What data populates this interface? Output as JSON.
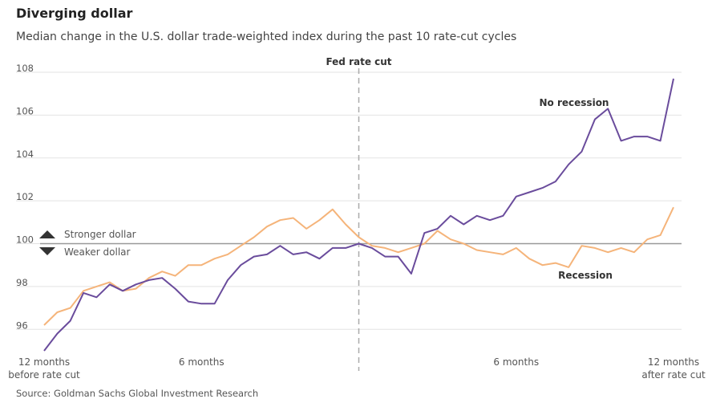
{
  "chart_data": {
    "type": "line",
    "title": "Diverging dollar",
    "subtitle": "Median change in the U.S. dollar trade-weighted index during the past 10 rate-cut cycles",
    "source": "Source: Goldman Sachs Global Investment Research",
    "x": [
      -12,
      -11.5,
      -11,
      -10.5,
      -10,
      -9.5,
      -9,
      -8.5,
      -8,
      -7.5,
      -7,
      -6.5,
      -6,
      -5.5,
      -5,
      -4.5,
      -4,
      -3.5,
      -3,
      -2.5,
      -2,
      -1.5,
      -1,
      -0.5,
      0,
      0.5,
      1,
      1.5,
      2,
      2.5,
      3,
      3.5,
      4,
      4.5,
      5,
      5.5,
      6,
      6.5,
      7,
      7.5,
      8,
      8.5,
      9,
      9.5,
      10,
      10.5,
      11,
      11.5,
      12
    ],
    "series": [
      {
        "name": "No recession",
        "color": "#6a4c9c",
        "values": [
          95.0,
          95.8,
          96.4,
          97.7,
          97.5,
          98.1,
          97.8,
          98.1,
          98.3,
          98.4,
          97.9,
          97.3,
          97.2,
          97.2,
          98.3,
          99.0,
          99.4,
          99.5,
          99.9,
          99.5,
          99.6,
          99.3,
          99.8,
          99.8,
          100.0,
          99.8,
          99.4,
          99.4,
          98.6,
          100.5,
          100.7,
          101.3,
          100.9,
          101.3,
          101.1,
          101.3,
          102.2,
          102.4,
          102.6,
          102.9,
          103.7,
          104.3,
          105.8,
          106.3,
          104.8,
          105.0,
          105.0,
          104.8,
          107.7
        ]
      },
      {
        "name": "Recession",
        "color": "#f5b47a",
        "values": [
          96.2,
          96.8,
          97.0,
          97.8,
          98.0,
          98.2,
          97.8,
          97.9,
          98.4,
          98.7,
          98.5,
          99.0,
          99.0,
          99.3,
          99.5,
          99.9,
          100.3,
          100.8,
          101.1,
          101.2,
          100.7,
          101.1,
          101.6,
          100.9,
          100.3,
          99.9,
          99.8,
          99.6,
          99.8,
          100.0,
          100.6,
          100.2,
          100.0,
          99.7,
          99.6,
          99.5,
          99.8,
          99.3,
          99.0,
          99.1,
          98.9,
          99.9,
          99.8,
          99.6,
          99.8,
          99.6,
          100.2,
          100.4,
          101.7
        ]
      }
    ],
    "xlim": [
      -12,
      12
    ],
    "xticks": [
      {
        "value": -12,
        "label": "12 months\nbefore rate cut"
      },
      {
        "value": -6,
        "label": "6 months"
      },
      {
        "value": 6,
        "label": "6 months"
      },
      {
        "value": 12,
        "label": "12 months\nafter rate cut"
      }
    ],
    "ylim": [
      95,
      108
    ],
    "yticks": [
      96,
      98,
      100,
      102,
      104,
      106,
      108
    ],
    "grid": true,
    "baseline": 100,
    "rate_cut": {
      "label": "Fed rate cut",
      "x": 0
    },
    "stronger_label": "Stronger dollar",
    "weaker_label": "Weaker dollar"
  }
}
